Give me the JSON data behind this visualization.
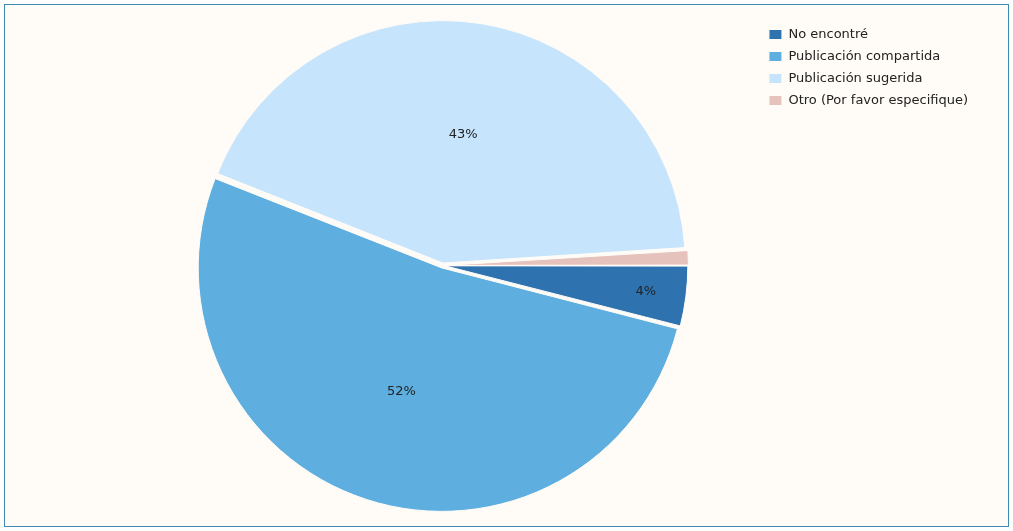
{
  "chart_data": {
    "type": "pie",
    "categories": [
      "No encontré",
      "Publicación compartida",
      "Publicación sugerida",
      "Otro (Por favor especifique)"
    ],
    "values": [
      4,
      52,
      43,
      1
    ],
    "colors": [
      "#2f72b0",
      "#5eaee0",
      "#c6e4fc",
      "#e6c2bd"
    ],
    "value_labels": [
      "4%",
      "52%",
      "43%",
      null
    ],
    "legend": "top right"
  }
}
